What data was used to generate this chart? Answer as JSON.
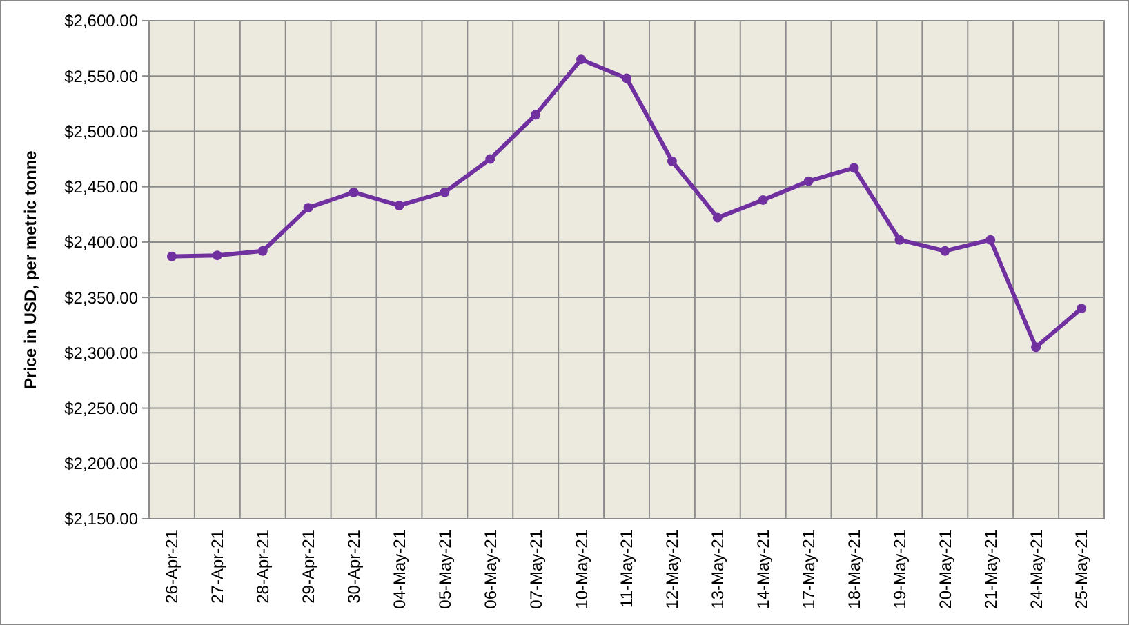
{
  "chart_data": {
    "type": "line",
    "ylabel": "Price in USD, per metric tonne",
    "categories": [
      "26-Apr-21",
      "27-Apr-21",
      "28-Apr-21",
      "29-Apr-21",
      "30-Apr-21",
      "04-May-21",
      "05-May-21",
      "06-May-21",
      "07-May-21",
      "10-May-21",
      "11-May-21",
      "12-May-21",
      "13-May-21",
      "14-May-21",
      "17-May-21",
      "18-May-21",
      "19-May-21",
      "20-May-21",
      "21-May-21",
      "24-May-21",
      "25-May-21"
    ],
    "series": [
      {
        "color": "#7030a0",
        "values": [
          2387,
          2388,
          2392,
          2431,
          2445,
          2433,
          2445,
          2475,
          2515,
          2565,
          2548,
          2473,
          2422,
          2438,
          2455,
          2467,
          2402,
          2392,
          2402,
          2305,
          2340
        ]
      }
    ],
    "ylim": [
      2150,
      2600
    ],
    "yticks": [
      {
        "value": 2150,
        "label": "$2,150.00"
      },
      {
        "value": 2200,
        "label": "$2,200.00"
      },
      {
        "value": 2250,
        "label": "$2,250.00"
      },
      {
        "value": 2300,
        "label": "$2,300.00"
      },
      {
        "value": 2350,
        "label": "$2,350.00"
      },
      {
        "value": 2400,
        "label": "$2,400.00"
      },
      {
        "value": 2450,
        "label": "$2,450.00"
      },
      {
        "value": 2500,
        "label": "$2,500.00"
      },
      {
        "value": 2550,
        "label": "$2,550.00"
      },
      {
        "value": 2600,
        "label": "$2,600.00"
      }
    ],
    "grid": true,
    "marker": "circle",
    "line_style": "solid"
  }
}
